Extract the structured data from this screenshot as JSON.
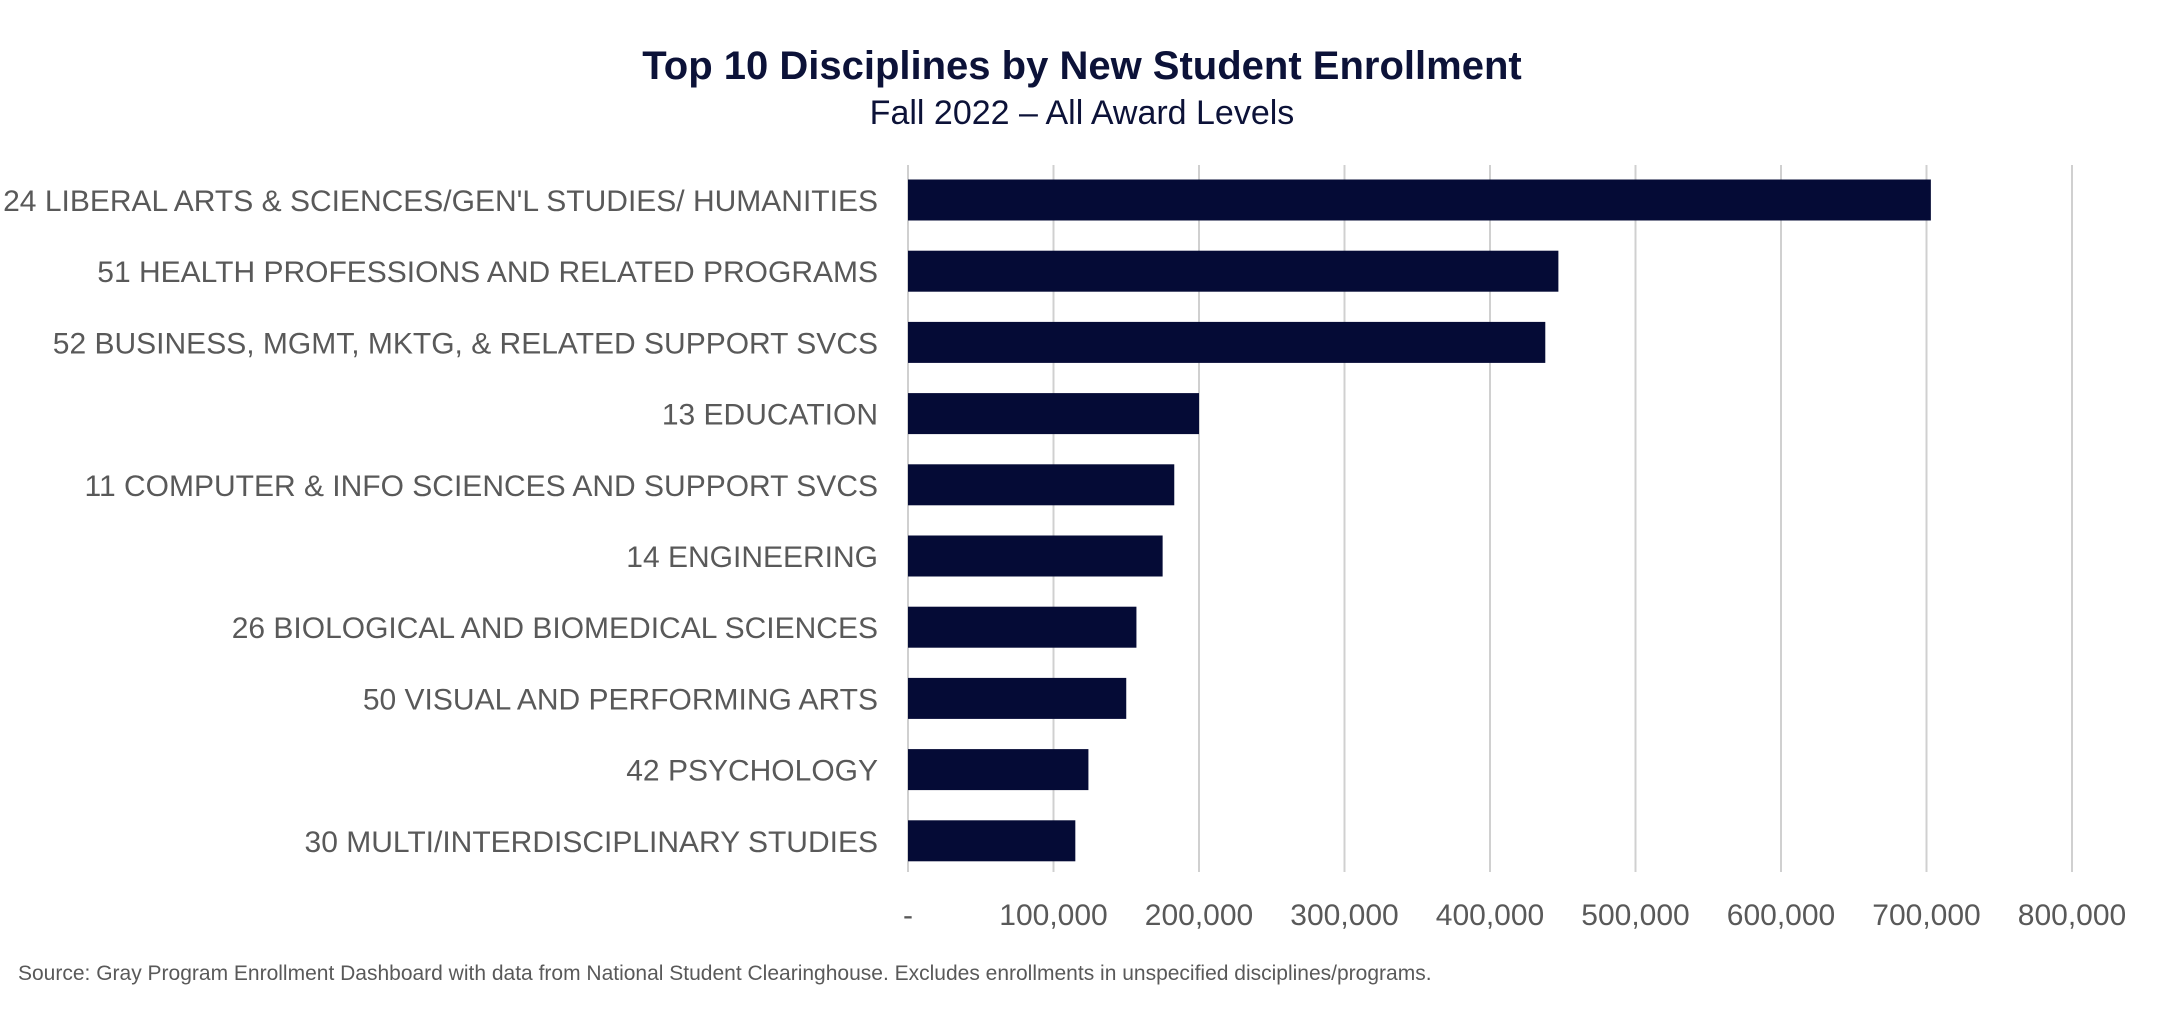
{
  "chart_data": {
    "type": "bar",
    "orientation": "horizontal",
    "title": "Top 10 Disciplines by New Student Enrollment",
    "subtitle": "Fall 2022 – All Award Levels",
    "categories": [
      "24 LIBERAL ARTS & SCIENCES/GEN'L STUDIES/ HUMANITIES",
      "51 HEALTH PROFESSIONS AND RELATED PROGRAMS",
      "52 BUSINESS, MGMT, MKTG, & RELATED SUPPORT SVCS",
      "13 EDUCATION",
      "11 COMPUTER & INFO SCIENCES AND SUPPORT SVCS",
      "14 ENGINEERING",
      "26 BIOLOGICAL AND BIOMEDICAL SCIENCES",
      "50 VISUAL AND PERFORMING ARTS",
      "42 PSYCHOLOGY",
      "30 MULTI/INTERDISCIPLINARY STUDIES"
    ],
    "values": [
      703000,
      447000,
      438000,
      200000,
      183000,
      175000,
      157000,
      150000,
      124000,
      115000
    ],
    "xlim": [
      0,
      800000
    ],
    "xticks": [
      0,
      100000,
      200000,
      300000,
      400000,
      500000,
      600000,
      700000,
      800000
    ],
    "xtick_labels": [
      "-",
      "100,000",
      "200,000",
      "300,000",
      "400,000",
      "500,000",
      "600,000",
      "700,000",
      "800,000"
    ],
    "xlabel": "",
    "ylabel": "",
    "grid": "vertical",
    "legend": "none",
    "bar_color": "#050b36",
    "grid_color": "#d0d0d0"
  },
  "source_note": "Source: Gray Program Enrollment Dashboard with data from National Student Clearinghouse. Excludes enrollments in unspecified disciplines/programs."
}
